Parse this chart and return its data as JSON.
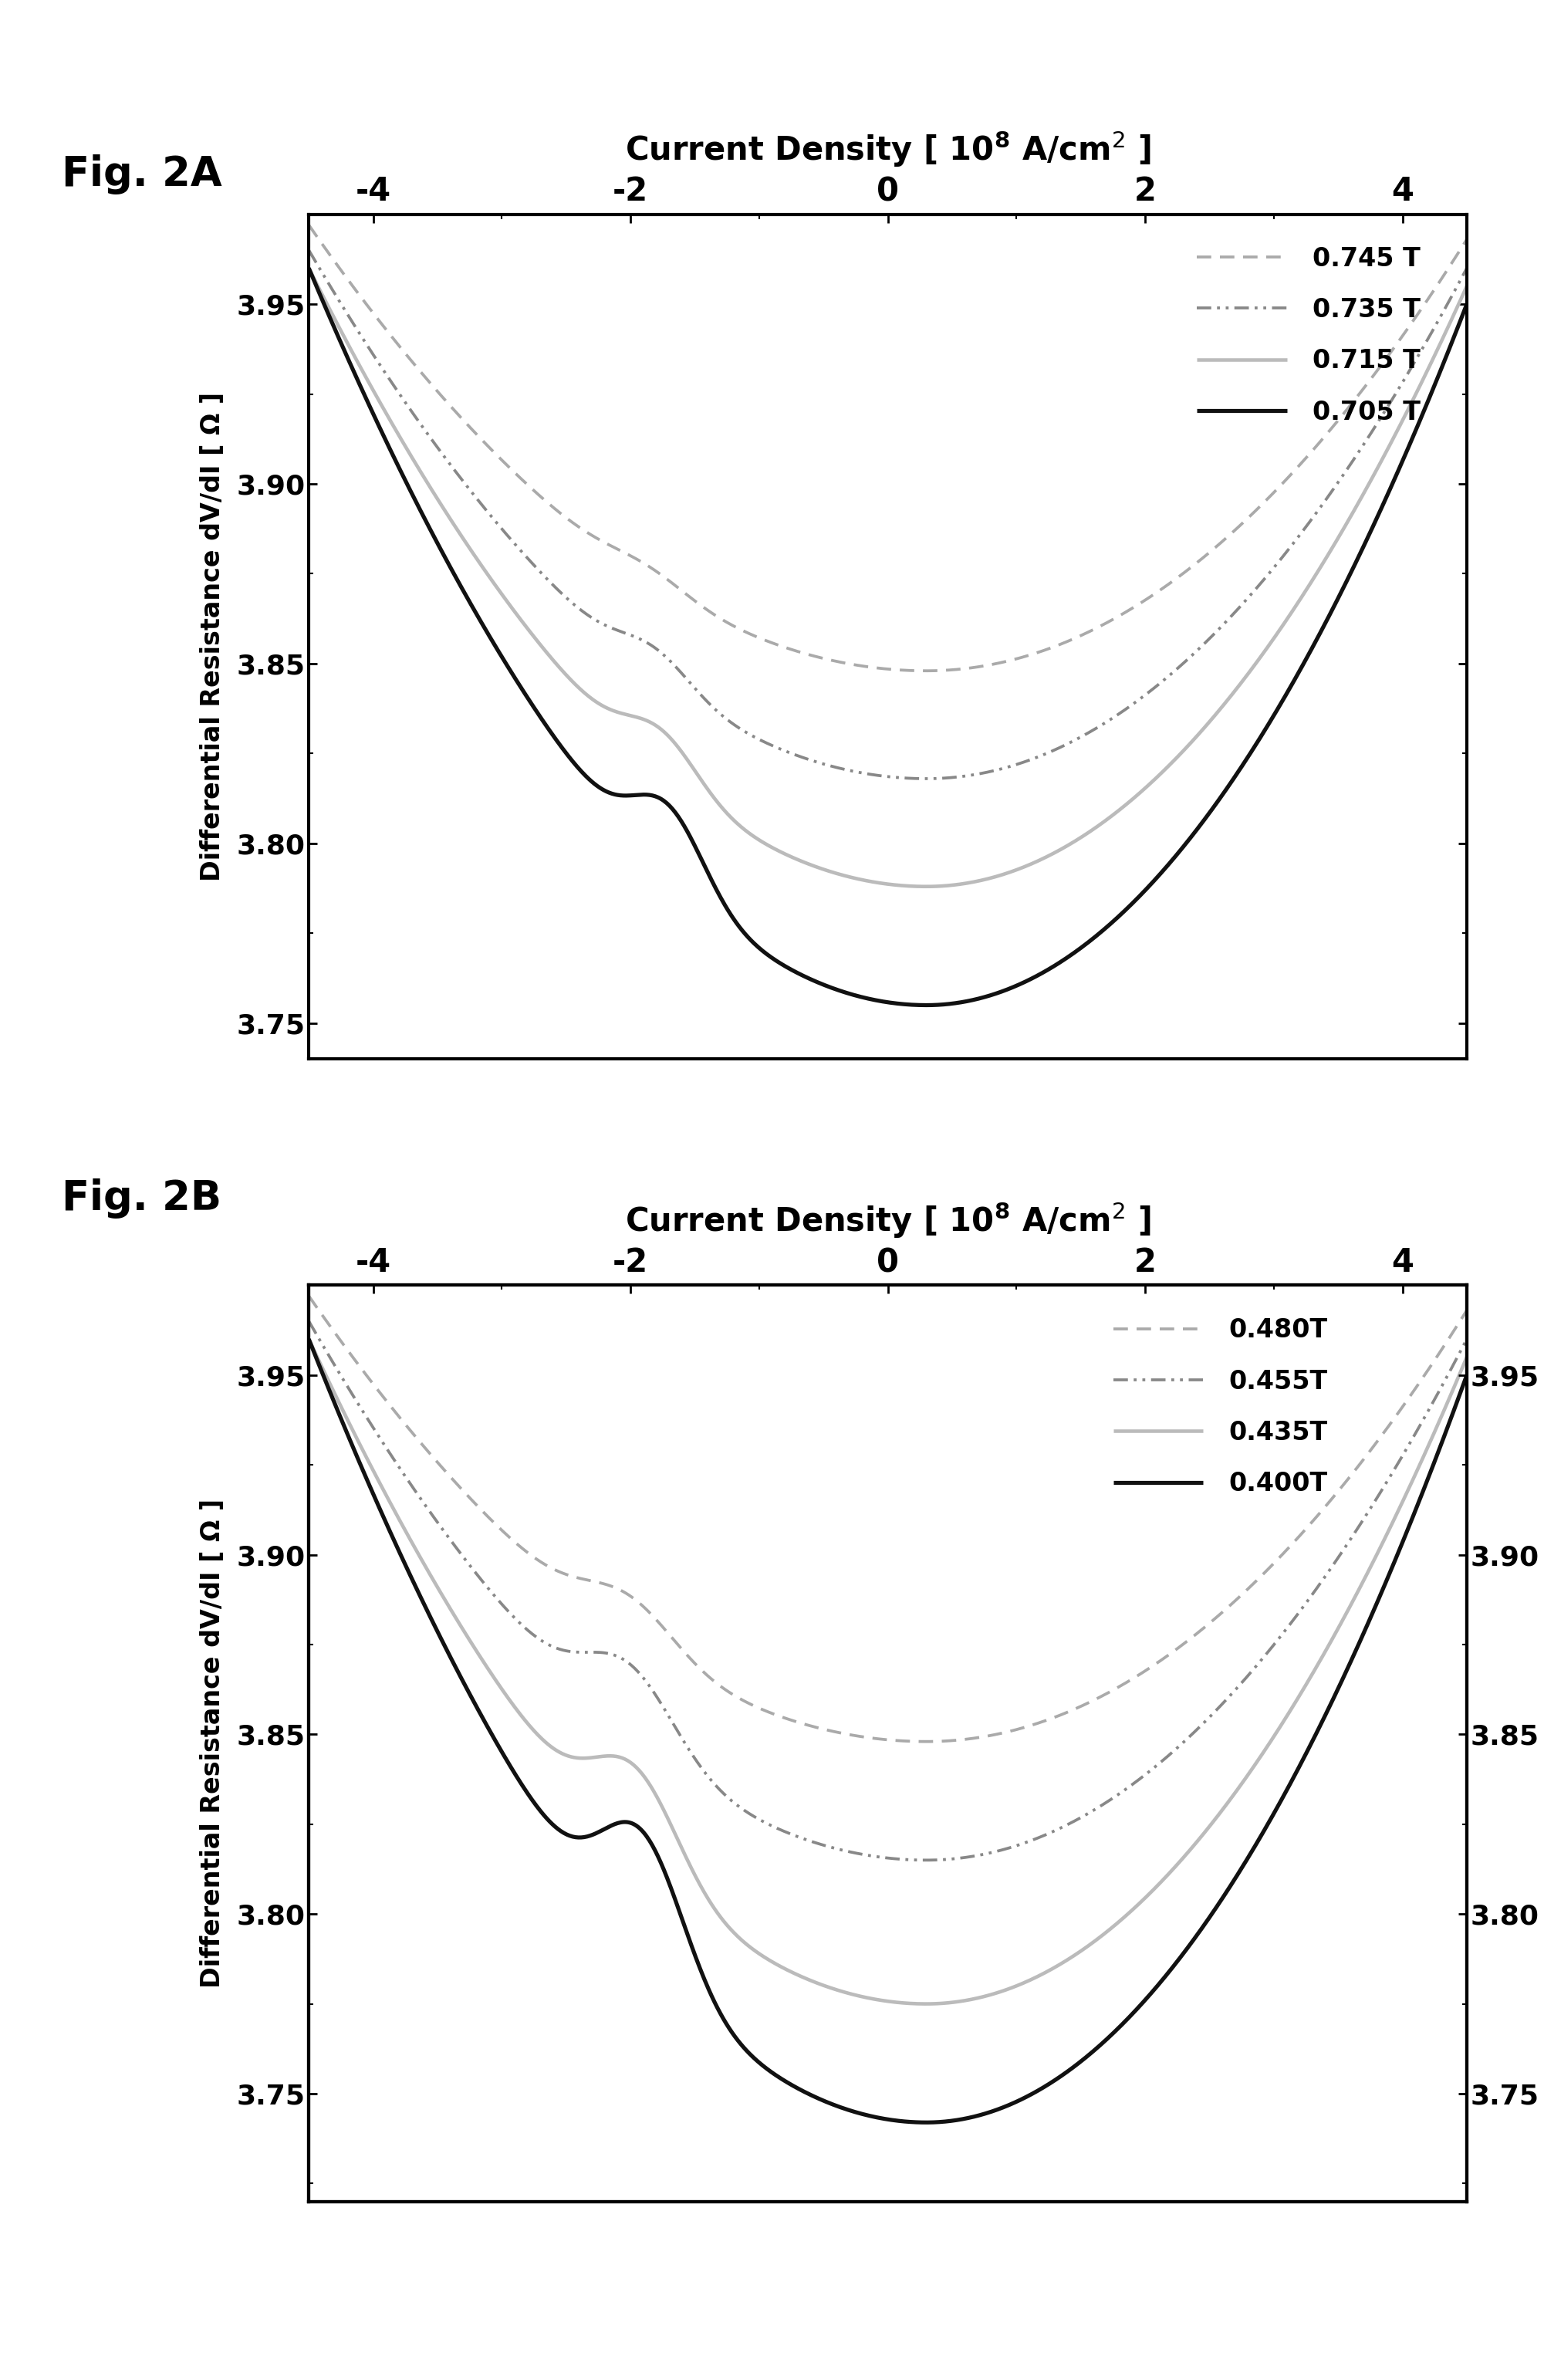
{
  "fig_label_A": "Fig. 2A",
  "fig_label_B": "Fig. 2B",
  "xlabel": "Current Density [ 10$^8$ A/cm$^2$ ]",
  "ylabel": "Differential Resistance dV/dI [ Ω ]",
  "xlim": [
    -4.5,
    4.5
  ],
  "xticks": [
    -4,
    -2,
    0,
    2,
    4
  ],
  "ylim_A": [
    3.74,
    3.975
  ],
  "yticks_A": [
    3.75,
    3.8,
    3.85,
    3.9,
    3.95
  ],
  "ylim_B": [
    3.72,
    3.975
  ],
  "yticks_B": [
    3.75,
    3.8,
    3.85,
    3.9,
    3.95
  ],
  "legend_A": [
    "0.745 T",
    "0.735 T",
    "0.715 T",
    "0.705 T"
  ],
  "legend_B": [
    "0.480T",
    "0.455T",
    "0.435T",
    "0.400T"
  ],
  "background_color": "#ffffff",
  "plot_bg_color": "#ffffff"
}
